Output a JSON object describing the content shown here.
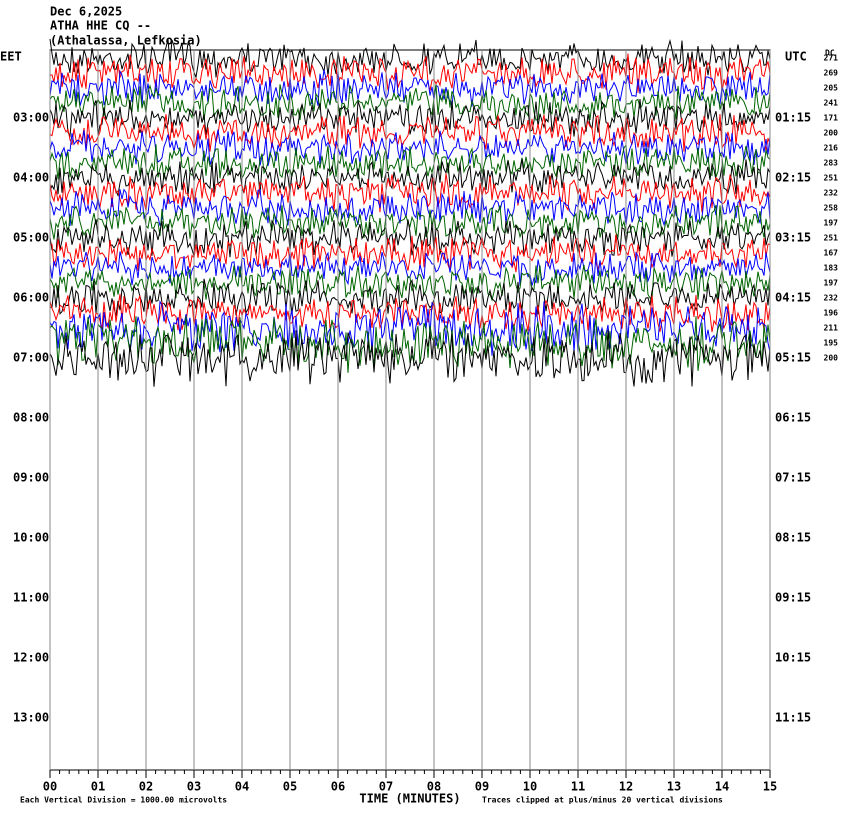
{
  "chart_data": {
    "type": "helicorder",
    "title_lines": [
      "Dec 6,2025",
      "ATHA HHE CQ --",
      "(Athalassa, Lefkosia)"
    ],
    "left_axis_label": "EET",
    "right_axis_label": "UTC",
    "dc_label": "DC",
    "left_time_labels": [
      "03:00",
      "04:00",
      "05:00",
      "06:00",
      "07:00",
      "08:00",
      "09:00",
      "10:00",
      "11:00",
      "12:00",
      "13:00"
    ],
    "right_time_labels": [
      "01:15",
      "02:15",
      "03:15",
      "04:15",
      "05:15",
      "06:15",
      "07:15",
      "08:15",
      "09:15",
      "10:15",
      "11:15"
    ],
    "trace_colors": [
      "#000000",
      "#ff0000",
      "#0000ff",
      "#006400"
    ],
    "dc_values": [
      271,
      269,
      205,
      241,
      171,
      200,
      216,
      283,
      251,
      232,
      258,
      197,
      251,
      167,
      183,
      197,
      232,
      196,
      211,
      195,
      200
    ],
    "xlim": [
      0,
      15
    ],
    "xticks": [
      {
        "value": 0,
        "label": "00"
      },
      {
        "value": 1,
        "label": "01"
      },
      {
        "value": 2,
        "label": "02"
      },
      {
        "value": 3,
        "label": "03"
      },
      {
        "value": 4,
        "label": "04"
      },
      {
        "value": 5,
        "label": "05"
      },
      {
        "value": 6,
        "label": "06"
      },
      {
        "value": 7,
        "label": "07"
      },
      {
        "value": 8,
        "label": "08"
      },
      {
        "value": 9,
        "label": "09"
      },
      {
        "value": 10,
        "label": "10"
      },
      {
        "value": 11,
        "label": "11"
      },
      {
        "value": 12,
        "label": "12"
      },
      {
        "value": 13,
        "label": "13"
      },
      {
        "value": 14,
        "label": "14"
      },
      {
        "value": 15,
        "label": "15"
      }
    ],
    "x_label": "TIME (MINUTES)",
    "scale_note": "Each Vertical Division = 1000.00 microvolts",
    "clip_note": "Traces clipped at plus/minus 20 vertical divisions"
  }
}
